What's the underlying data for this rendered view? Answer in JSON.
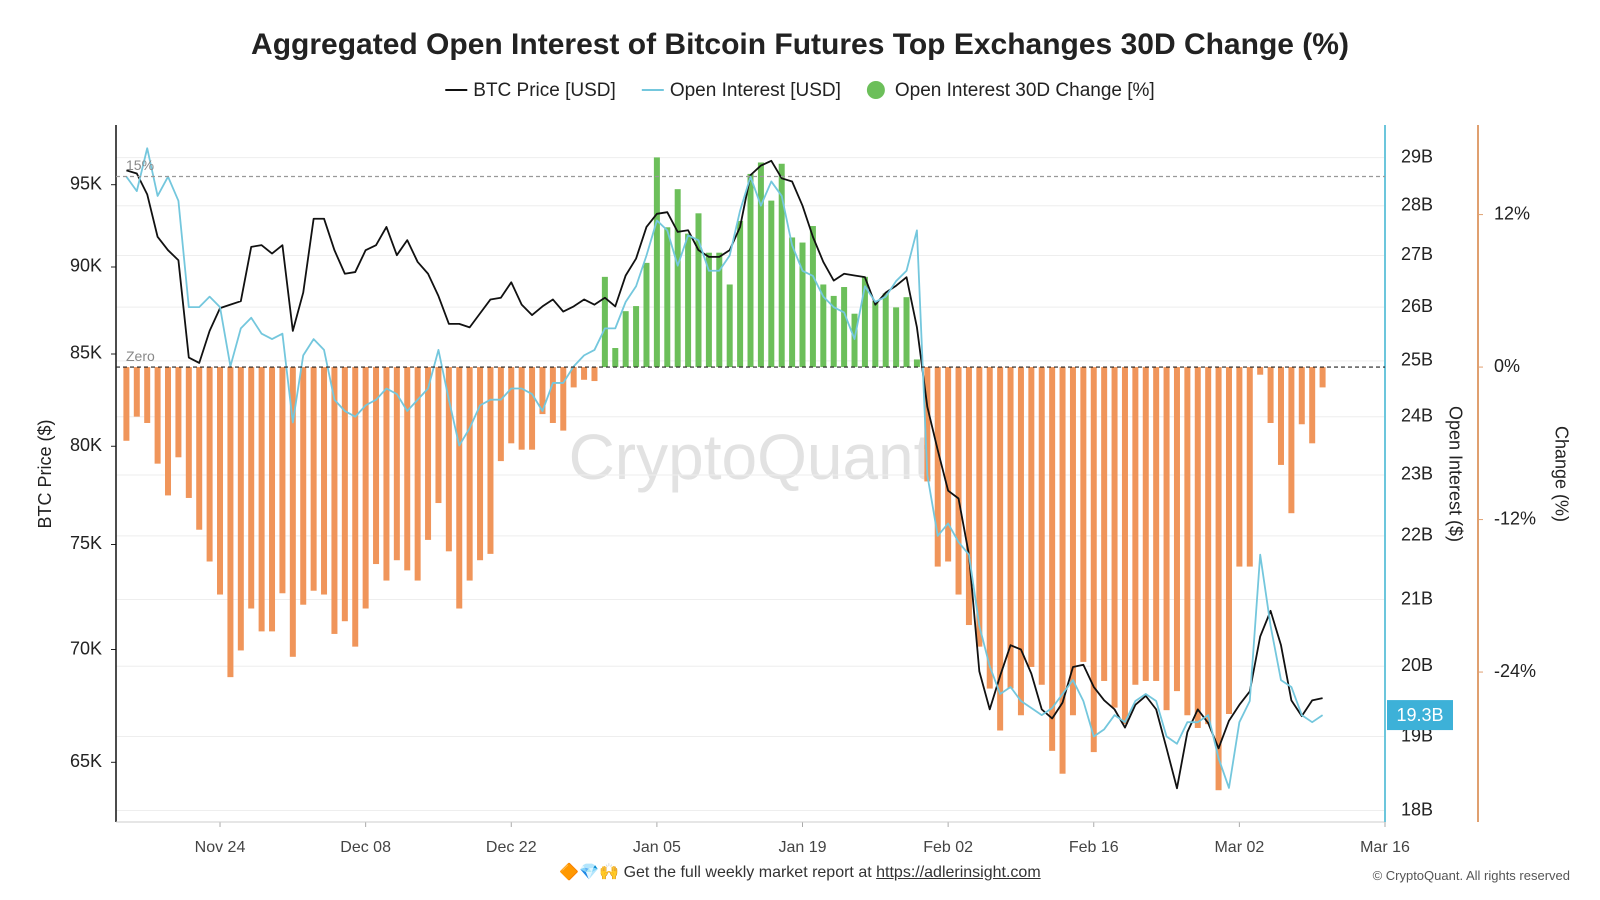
{
  "chart_data": {
    "type": "combo",
    "title": "Aggregated Open Interest of Bitcoin Futures Top Exchanges 30D Change (%)",
    "x": [
      "Nov 15",
      "Nov 16",
      "Nov 17",
      "Nov 18",
      "Nov 19",
      "Nov 20",
      "Nov 21",
      "Nov 22",
      "Nov 23",
      "Nov 24",
      "Nov 25",
      "Nov 26",
      "Nov 27",
      "Nov 28",
      "Nov 29",
      "Nov 30",
      "Dec 01",
      "Dec 02",
      "Dec 03",
      "Dec 04",
      "Dec 05",
      "Dec 06",
      "Dec 07",
      "Dec 08",
      "Dec 09",
      "Dec 10",
      "Dec 11",
      "Dec 12",
      "Dec 13",
      "Dec 14",
      "Dec 15",
      "Dec 16",
      "Dec 17",
      "Dec 18",
      "Dec 19",
      "Dec 20",
      "Dec 21",
      "Dec 22",
      "Dec 23",
      "Dec 24",
      "Dec 25",
      "Dec 26",
      "Dec 27",
      "Dec 28",
      "Dec 29",
      "Dec 30",
      "Dec 31",
      "Jan 01",
      "Jan 02",
      "Jan 03",
      "Jan 04",
      "Jan 05",
      "Jan 06",
      "Jan 07",
      "Jan 08",
      "Jan 09",
      "Jan 10",
      "Jan 11",
      "Jan 12",
      "Jan 13",
      "Jan 14",
      "Jan 15",
      "Jan 16",
      "Jan 17",
      "Jan 18",
      "Jan 19",
      "Jan 20",
      "Jan 21",
      "Jan 22",
      "Jan 23",
      "Jan 24",
      "Jan 25",
      "Jan 26",
      "Jan 27",
      "Jan 28",
      "Jan 29",
      "Jan 30",
      "Jan 31",
      "Feb 01",
      "Feb 02",
      "Feb 03",
      "Feb 04",
      "Feb 05",
      "Feb 06",
      "Feb 07",
      "Feb 08",
      "Feb 09",
      "Feb 10",
      "Feb 11",
      "Feb 12",
      "Feb 13",
      "Feb 14",
      "Feb 15",
      "Feb 16",
      "Feb 17",
      "Feb 18",
      "Feb 19",
      "Feb 20",
      "Feb 21",
      "Feb 22",
      "Feb 23",
      "Feb 24",
      "Feb 25",
      "Feb 26",
      "Feb 27",
      "Feb 28",
      "Mar 01",
      "Mar 02",
      "Mar 03",
      "Mar 04",
      "Mar 05",
      "Mar 06",
      "Mar 07",
      "Mar 08",
      "Mar 09",
      "Mar 10"
    ],
    "xlim": [
      "Nov 14",
      "Mar 16"
    ],
    "xticks": [
      "Nov 24",
      "Dec 08",
      "Dec 22",
      "Jan 05",
      "Jan 19",
      "Feb 02",
      "Feb 16",
      "Mar 02",
      "Mar 16"
    ],
    "ylabel": "BTC Price ($)",
    "ylog": true,
    "ylim": [
      62500,
      98800
    ],
    "yticks": [
      {
        "value": 65000,
        "label": "65K"
      },
      {
        "value": 70000,
        "label": "70K"
      },
      {
        "value": 75000,
        "label": "75K"
      },
      {
        "value": 80000,
        "label": "80K"
      },
      {
        "value": 85000,
        "label": "85K"
      },
      {
        "value": 90000,
        "label": "90K"
      },
      {
        "value": 95000,
        "label": "95K"
      }
    ],
    "y2label": "Open Interest ($)",
    "y2log": true,
    "y2lim": [
      17.85,
      29.7
    ],
    "y2ticks": [
      {
        "value": 18,
        "label": "18B"
      },
      {
        "value": 19,
        "label": "19B"
      },
      {
        "value": 20,
        "label": "20B"
      },
      {
        "value": 21,
        "label": "21B"
      },
      {
        "value": 22,
        "label": "22B"
      },
      {
        "value": 23,
        "label": "23B"
      },
      {
        "value": 24,
        "label": "24B"
      },
      {
        "value": 25,
        "label": "25B"
      },
      {
        "value": 26,
        "label": "26B"
      },
      {
        "value": 27,
        "label": "27B"
      },
      {
        "value": 28,
        "label": "28B"
      },
      {
        "value": 29,
        "label": "29B"
      }
    ],
    "y3label": "Change (%)",
    "y3lim": [
      -35.8,
      19.05
    ],
    "y3ticks": [
      {
        "value": -24,
        "label": "-24%"
      },
      {
        "value": -12,
        "label": "-12%"
      },
      {
        "value": 0,
        "label": "0%"
      },
      {
        "value": 12,
        "label": "12%"
      }
    ],
    "grid": true,
    "reference_lines": [
      {
        "value": 15,
        "label": "15%",
        "color": "#999999"
      },
      {
        "value": 0,
        "label": "Zero",
        "color": "#222222"
      }
    ],
    "series": [
      {
        "name": "BTC Price [USD]",
        "type": "line",
        "color": "#111111",
        "axis": "y",
        "values": [
          95900,
          95700,
          94400,
          91800,
          91000,
          90400,
          84800,
          84500,
          86300,
          87600,
          87800,
          88000,
          91200,
          91300,
          90800,
          91300,
          86300,
          88500,
          92900,
          92900,
          91000,
          89600,
          89700,
          91000,
          91300,
          92400,
          90700,
          91600,
          90300,
          89600,
          88300,
          86700,
          86700,
          86500,
          87300,
          88100,
          88200,
          89100,
          87800,
          87200,
          87700,
          88100,
          87400,
          87700,
          88100,
          87800,
          88200,
          87700,
          89500,
          90500,
          92400,
          93200,
          93300,
          92100,
          92200,
          91000,
          90600,
          90600,
          91000,
          92400,
          95600,
          96200,
          96500,
          95400,
          95200,
          93700,
          91800,
          90300,
          89200,
          89600,
          89500,
          89400,
          87800,
          88500,
          88900,
          89400,
          86500,
          82100,
          79800,
          77700,
          77300,
          74500,
          69000,
          67300,
          68800,
          70200,
          70000,
          68900,
          67300,
          66900,
          67600,
          69200,
          69300,
          68300,
          67700,
          67300,
          66500,
          67500,
          67900,
          67300,
          65600,
          63900,
          66300,
          67300,
          66700,
          65600,
          66800,
          67500,
          68100,
          70600,
          71800,
          70200,
          67700,
          67000,
          67700,
          67800
        ]
      },
      {
        "name": "Open Interest [USD]",
        "type": "line",
        "color": "#74c7dd",
        "axis": "y2",
        "current_label": "19.3B",
        "values": [
          28.6,
          28.3,
          29.2,
          28.2,
          28.6,
          28.1,
          26.0,
          26.0,
          26.2,
          26.0,
          24.9,
          25.6,
          25.8,
          25.5,
          25.4,
          25.5,
          23.9,
          25.1,
          25.4,
          25.2,
          24.3,
          24.1,
          24.0,
          24.2,
          24.3,
          24.5,
          24.4,
          24.1,
          24.3,
          24.5,
          25.2,
          24.3,
          23.5,
          23.8,
          24.2,
          24.3,
          24.3,
          24.5,
          24.5,
          24.4,
          24.1,
          24.6,
          24.6,
          24.9,
          25.1,
          25.2,
          25.6,
          25.6,
          26.1,
          26.4,
          27.0,
          27.7,
          27.5,
          26.8,
          27.4,
          27.3,
          26.7,
          26.7,
          27.0,
          27.9,
          28.6,
          28.0,
          28.5,
          28.2,
          27.2,
          26.7,
          26.6,
          26.2,
          26.0,
          25.9,
          25.4,
          26.4,
          26.1,
          26.2,
          26.5,
          26.7,
          27.5,
          23.0,
          22.0,
          22.2,
          21.9,
          21.7,
          20.6,
          20.0,
          19.6,
          19.7,
          19.5,
          19.4,
          19.3,
          19.4,
          19.6,
          19.8,
          19.5,
          19.0,
          19.1,
          19.3,
          19.2,
          19.5,
          19.6,
          19.5,
          19.0,
          18.9,
          19.2,
          19.2,
          19.3,
          18.7,
          18.3,
          19.2,
          19.5,
          21.7,
          20.6,
          19.8,
          19.7,
          19.3,
          19.2,
          19.3
        ]
      },
      {
        "name": "Open Interest 30D Change [%]",
        "type": "bar",
        "color": "#6cbf5a",
        "negative_color": "#f0955a",
        "axis": "y3",
        "values": [
          -5.8,
          -3.9,
          -4.4,
          -7.6,
          -10.1,
          -7.1,
          -10.3,
          -12.8,
          -15.3,
          -17.9,
          -24.4,
          -22.3,
          -19.0,
          -20.8,
          -20.8,
          -17.8,
          -22.8,
          -18.7,
          -17.6,
          -17.9,
          -21.0,
          -20.0,
          -22.0,
          -19.0,
          -15.5,
          -16.8,
          -15.2,
          -16.0,
          -16.8,
          -13.6,
          -10.7,
          -14.5,
          -19.0,
          -16.8,
          -15.2,
          -14.7,
          -7.4,
          -6.0,
          -6.5,
          -6.5,
          -3.7,
          -4.4,
          -5.0,
          -1.6,
          -1.0,
          -1.1,
          7.1,
          1.5,
          4.4,
          4.8,
          8.2,
          16.5,
          11.0,
          14.0,
          10.5,
          12.1,
          9.0,
          9.0,
          6.5,
          11.5,
          15.2,
          16.1,
          13.1,
          16.0,
          10.2,
          9.8,
          11.1,
          6.5,
          5.6,
          6.3,
          4.2,
          7.1,
          5.2,
          5.8,
          4.7,
          5.5,
          0.6,
          -9.0,
          -15.7,
          -15.3,
          -17.9,
          -20.3,
          -22.0,
          -25.3,
          -28.6,
          -25.3,
          -27.4,
          -23.6,
          -25.0,
          -30.2,
          -32.0,
          -27.4,
          -23.2,
          -30.3,
          -24.7,
          -26.8,
          -28.1,
          -25.0,
          -24.7,
          -24.7,
          -27.0,
          -25.5,
          -27.4,
          -28.4,
          -28.1,
          -33.3,
          -27.3,
          -15.7,
          -15.7,
          -0.6,
          -4.4,
          -7.7,
          -11.5,
          -4.5,
          -6.0,
          -1.6
        ]
      }
    ],
    "watermark": "CryptoQuant"
  },
  "footer": {
    "icons": "🔶💎🙌",
    "text": "Get the full weekly market report at",
    "link": "https://adlerinsight.com"
  },
  "copyright": "© CryptoQuant. All rights reserved"
}
